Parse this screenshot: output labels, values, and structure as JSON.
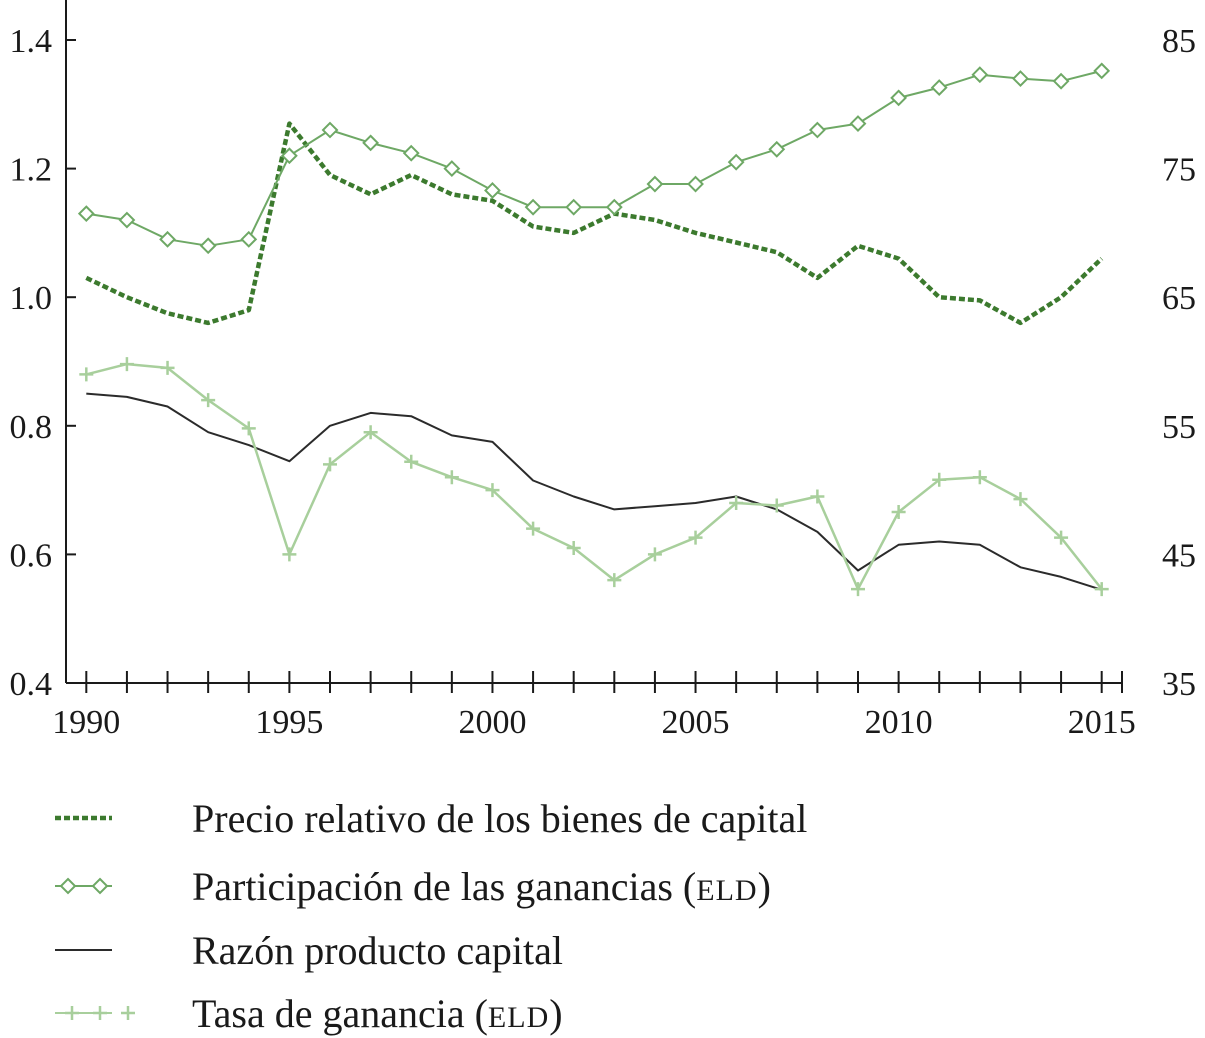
{
  "chart_data": {
    "type": "line",
    "title": "",
    "xlabel": "",
    "ylabel": "",
    "x": [
      1990,
      1991,
      1992,
      1993,
      1994,
      1995,
      1996,
      1997,
      1998,
      1999,
      2000,
      2001,
      2002,
      2003,
      2004,
      2005,
      2006,
      2007,
      2008,
      2009,
      2010,
      2011,
      2012,
      2013,
      2014,
      2015
    ],
    "xlim": [
      1989.5,
      2015.5
    ],
    "xticks": [
      1990,
      1995,
      2000,
      2005,
      2010,
      2015
    ],
    "xtick_labels": [
      "1990",
      "1995",
      "2000",
      "2005",
      "2010",
      "2015"
    ],
    "ylim_left": [
      0.4,
      1.4
    ],
    "yticks_left": [
      0.4,
      0.6,
      0.8,
      1.0,
      1.2,
      1.4
    ],
    "ytick_labels_left": [
      "0.4",
      "0.6",
      "0.8",
      "1.0",
      "1.2",
      "1.4"
    ],
    "ylim_right": [
      35,
      85
    ],
    "yticks_right": [
      35,
      45,
      55,
      65,
      75,
      85
    ],
    "ytick_labels_right": [
      "35",
      "45",
      "55",
      "65",
      "75",
      "85"
    ],
    "grid": false,
    "legend_position": "bottom",
    "series": [
      {
        "name": "Precio relativo de los bienes de capital",
        "legend_main": "Precio relativo de los bienes de capital",
        "legend_sc": "",
        "legend_suffix": "",
        "axis": "left",
        "style": "dashed",
        "marker": "none",
        "color": "#3c7a2e",
        "values": [
          1.03,
          1.0,
          0.975,
          0.96,
          0.98,
          1.27,
          1.19,
          1.16,
          1.19,
          1.16,
          1.15,
          1.11,
          1.1,
          1.13,
          1.12,
          1.1,
          1.085,
          1.07,
          1.03,
          1.08,
          1.06,
          1.0,
          0.995,
          0.96,
          1.0,
          1.06
        ]
      },
      {
        "name": "Participación de las ganancias (ELD)",
        "legend_main": "Participación de las ganancias (",
        "legend_sc": "eld",
        "legend_suffix": ")",
        "axis": "right",
        "style": "solid",
        "marker": "diamond",
        "color": "#6ea865",
        "values": [
          71.5,
          71.0,
          69.5,
          69.0,
          69.5,
          76.0,
          78.0,
          77.0,
          76.2,
          75.0,
          73.3,
          72.0,
          72.0,
          72.0,
          73.8,
          73.8,
          75.5,
          76.5,
          78.0,
          78.5,
          80.5,
          81.3,
          82.3,
          82.0,
          81.8,
          82.6
        ]
      },
      {
        "name": "Razón producto capital",
        "legend_main": "Razón producto capital",
        "legend_sc": "",
        "legend_suffix": "",
        "axis": "left",
        "style": "solid",
        "marker": "none",
        "color": "#2b2b2b",
        "values": [
          0.85,
          0.845,
          0.83,
          0.79,
          0.77,
          0.745,
          0.8,
          0.82,
          0.815,
          0.785,
          0.775,
          0.715,
          0.69,
          0.67,
          0.675,
          0.68,
          0.69,
          0.67,
          0.635,
          0.575,
          0.615,
          0.62,
          0.615,
          0.58,
          0.565,
          0.545
        ]
      },
      {
        "name": "Tasa de ganancia (ELD)",
        "legend_main": "Tasa de ganancia (",
        "legend_sc": "eld",
        "legend_suffix": ")",
        "axis": "right",
        "style": "solid",
        "marker": "plus",
        "color": "#a8cf9c",
        "values": [
          59.0,
          59.8,
          59.5,
          57.0,
          54.8,
          45.0,
          52.0,
          54.5,
          52.2,
          51.0,
          50.0,
          47.0,
          45.5,
          43.0,
          45.0,
          46.3,
          49.0,
          48.8,
          49.5,
          42.3,
          48.3,
          50.8,
          51.0,
          49.3,
          46.3,
          42.3
        ]
      }
    ]
  }
}
